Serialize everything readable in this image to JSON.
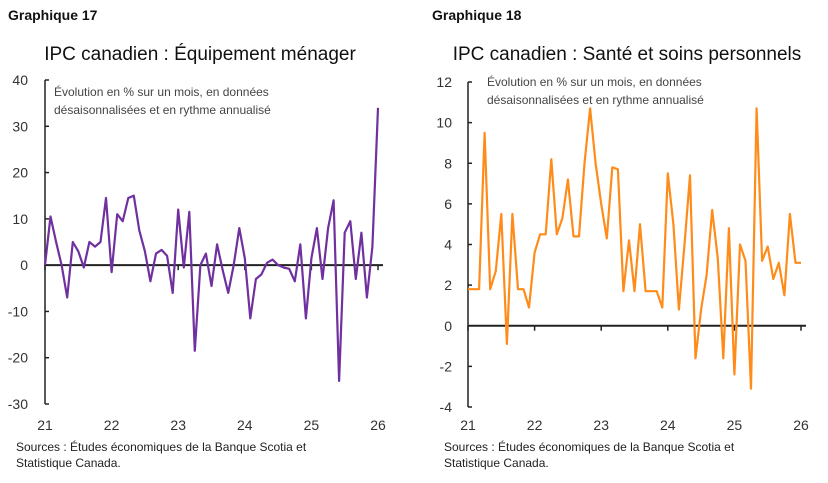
{
  "chart_data": [
    {
      "type": "line",
      "label": "Graphique 17",
      "title": "IPC canadien : Équipement ménager",
      "note": [
        "Évolution en % sur un mois, en données",
        "désaisonnalisées et en rythme annualisé"
      ],
      "source": [
        "Sources : Études économiques de la Banque Scotia et",
        "Statistique Canada."
      ],
      "x_start": "2021-01",
      "frequency": "monthly",
      "x_ticks": [
        "21",
        "22",
        "23",
        "24",
        "25",
        "26"
      ],
      "y_ticks": [
        40,
        30,
        20,
        10,
        0,
        -10,
        -20,
        -30
      ],
      "ylim": [
        -30,
        40
      ],
      "color": "#7030a0",
      "values": [
        0,
        10.5,
        5,
        0,
        -7,
        5,
        3,
        -0.5,
        5,
        4,
        5,
        14.5,
        -1.5,
        11,
        9.5,
        14.5,
        15,
        7.5,
        3,
        -3.5,
        2.5,
        3.3,
        2,
        -6,
        12,
        -0.5,
        11.5,
        -18.5,
        0,
        2.5,
        -4.5,
        4.5,
        -1,
        -6,
        0,
        8,
        1.5,
        -11.5,
        -3,
        -2,
        0.5,
        1.2,
        0,
        -0.5,
        -0.8,
        -3.5,
        4.5,
        -11.5,
        1.5,
        8,
        -3,
        8,
        14,
        -25,
        7,
        9.5,
        -3,
        7,
        -7,
        4,
        34
      ]
    },
    {
      "type": "line",
      "label": "Graphique 18",
      "title": "IPC canadien : Santé et soins personnels",
      "note": [
        "Évolution en % sur un mois, en données",
        "désaisonnalisées et en rythme annualisé"
      ],
      "source": [
        "Sources : Études économiques de la Banque Scotia et",
        "Statistique Canada."
      ],
      "x_start": "2021-01",
      "frequency": "monthly",
      "x_ticks": [
        "21",
        "22",
        "23",
        "24",
        "25",
        "26"
      ],
      "y_ticks": [
        12,
        10,
        8,
        6,
        4,
        2,
        0,
        -2,
        -4
      ],
      "ylim": [
        -4,
        12
      ],
      "color": "#ff8c1a",
      "values": [
        1.8,
        1.8,
        1.8,
        9.5,
        1.8,
        2.7,
        5.5,
        -0.9,
        5.5,
        1.8,
        1.8,
        0.9,
        3.6,
        4.5,
        4.5,
        8.2,
        4.5,
        5.3,
        7.2,
        4.4,
        4.4,
        8,
        10.7,
        8,
        6,
        4.3,
        7.8,
        7.7,
        1.7,
        4.2,
        1.7,
        5,
        1.7,
        1.7,
        1.7,
        0.9,
        7.5,
        5,
        0.8,
        4,
        7.4,
        -1.6,
        0.8,
        2.5,
        5.7,
        3.3,
        -1.6,
        4.8,
        -2.4,
        4,
        3.2,
        -3.1,
        10.7,
        3.2,
        3.9,
        2.3,
        3.1,
        1.5,
        5.5,
        3.1,
        3.1
      ]
    }
  ]
}
